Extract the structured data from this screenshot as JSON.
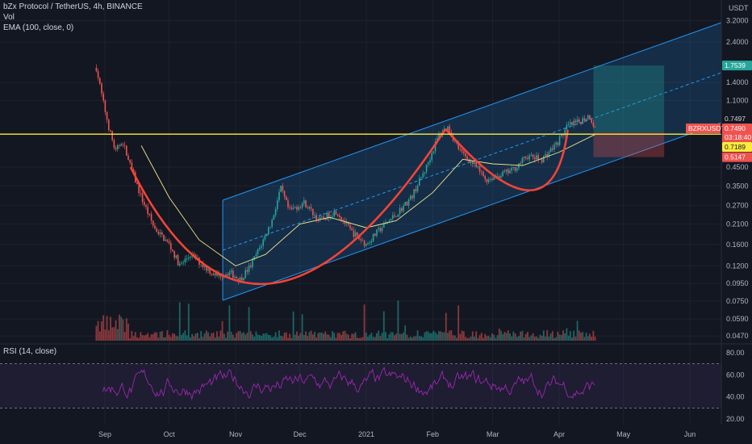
{
  "header": {
    "title": "bZx Protocol / TetherUS, 4h, BINANCE",
    "vol": "Vol",
    "ema": "EMA (100, close, 0)"
  },
  "rsi_header": "RSI (14, close)",
  "currency": "USDT",
  "colors": {
    "background": "#131722",
    "up_candle": "#26a69a",
    "down_candle": "#ef5350",
    "ema": "#f0e68c",
    "cup_curve": "#f44336",
    "channel": "#2196f3",
    "horizontal_line": "#ffeb3b",
    "target_box": "#26a69a",
    "stop_box": "#ef5350",
    "rsi_line": "#9c27b0",
    "rsi_band": "#7e57c2"
  },
  "chart_data": {
    "type": "candlestick",
    "symbol": "BZRXUSDT",
    "interval": "4h",
    "exchange": "BINANCE",
    "y_scale": "log",
    "price_ticks": [
      "3.2000",
      "2.4000",
      "1.4000",
      "1.1000",
      "0.4500",
      "0.3500",
      "0.2700",
      "0.2100",
      "0.1600",
      "0.1200",
      "0.0950",
      "0.0750",
      "0.0590",
      "0.0470"
    ],
    "x_ticks": [
      "Sep",
      "Oct",
      "Nov",
      "Dec",
      "2021",
      "Feb",
      "Mar",
      "Apr",
      "May",
      "Jun"
    ],
    "price_path": [
      [
        "2020-08-28",
        1.7
      ],
      [
        "2020-08-31",
        1.1
      ],
      [
        "2020-09-03",
        0.75
      ],
      [
        "2020-09-06",
        0.55
      ],
      [
        "2020-09-09",
        0.65
      ],
      [
        "2020-09-13",
        0.45
      ],
      [
        "2020-09-18",
        0.3
      ],
      [
        "2020-09-24",
        0.2
      ],
      [
        "2020-10-01",
        0.16
      ],
      [
        "2020-10-06",
        0.12
      ],
      [
        "2020-10-11",
        0.14
      ],
      [
        "2020-10-17",
        0.12
      ],
      [
        "2020-10-23",
        0.105
      ],
      [
        "2020-10-29",
        0.11
      ],
      [
        "2020-11-03",
        0.1
      ],
      [
        "2020-11-08",
        0.12
      ],
      [
        "2020-11-13",
        0.16
      ],
      [
        "2020-11-18",
        0.22
      ],
      [
        "2020-11-22",
        0.34
      ],
      [
        "2020-11-26",
        0.25
      ],
      [
        "2020-12-03",
        0.28
      ],
      [
        "2020-12-10",
        0.22
      ],
      [
        "2020-12-18",
        0.25
      ],
      [
        "2020-12-25",
        0.19
      ],
      [
        "2021-01-01",
        0.16
      ],
      [
        "2021-01-08",
        0.2
      ],
      [
        "2021-01-15",
        0.24
      ],
      [
        "2021-01-22",
        0.3
      ],
      [
        "2021-01-29",
        0.45
      ],
      [
        "2021-02-04",
        0.7
      ],
      [
        "2021-02-08",
        0.77
      ],
      [
        "2021-02-14",
        0.55
      ],
      [
        "2021-02-20",
        0.47
      ],
      [
        "2021-02-26",
        0.38
      ],
      [
        "2021-03-03",
        0.4
      ],
      [
        "2021-03-10",
        0.43
      ],
      [
        "2021-03-17",
        0.52
      ],
      [
        "2021-03-24",
        0.5
      ],
      [
        "2021-03-31",
        0.62
      ],
      [
        "2021-04-05",
        0.78
      ],
      [
        "2021-04-10",
        0.82
      ],
      [
        "2021-04-15",
        0.9
      ],
      [
        "2021-04-18",
        0.749
      ]
    ],
    "ema_path": [
      [
        "2020-09-18",
        0.6
      ],
      [
        "2020-10-01",
        0.3
      ],
      [
        "2020-10-15",
        0.17
      ],
      [
        "2020-11-01",
        0.12
      ],
      [
        "2020-11-15",
        0.14
      ],
      [
        "2020-12-01",
        0.21
      ],
      [
        "2020-12-15",
        0.23
      ],
      [
        "2021-01-01",
        0.2
      ],
      [
        "2021-01-15",
        0.22
      ],
      [
        "2021-02-01",
        0.32
      ],
      [
        "2021-02-15",
        0.5
      ],
      [
        "2021-03-01",
        0.47
      ],
      [
        "2021-03-15",
        0.46
      ],
      [
        "2021-04-01",
        0.55
      ],
      [
        "2021-04-18",
        0.7
      ]
    ],
    "drawings": {
      "cup_curve_1": {
        "from": [
          "2020-09-13",
          0.45
        ],
        "via": [
          "2020-11-18",
          0.095
        ],
        "to": [
          "2021-02-07",
          0.75
        ]
      },
      "cup_curve_2": {
        "from": [
          "2021-02-07",
          0.75
        ],
        "via": [
          "2021-03-18",
          0.33
        ],
        "to": [
          "2021-04-05",
          0.74
        ]
      },
      "channel": {
        "start": "2020-10-26",
        "end": "2021-06-30"
      },
      "horizontal_level": 0.7,
      "position_box": {
        "start": "2021-04-17",
        "end": "2021-05-20",
        "target": 1.7539,
        "entry": 0.7189,
        "stop": 0.5147
      }
    },
    "price_labels": [
      {
        "text": "1.7539",
        "kind": "target"
      },
      {
        "text": "0.7497",
        "kind": "plain"
      },
      {
        "text": "BZRXUSDT",
        "kind": "symbol"
      },
      {
        "text": "0.7490",
        "kind": "last"
      },
      {
        "text": "03:18:40",
        "kind": "timer"
      },
      {
        "text": "0.7189",
        "kind": "entry"
      },
      {
        "text": "0.5147",
        "kind": "stop"
      }
    ],
    "rsi": {
      "ticks": [
        "80.00",
        "60.00",
        "40.00",
        "20.00"
      ],
      "upper": 70,
      "lower": 30,
      "range": [
        15,
        85
      ]
    }
  }
}
